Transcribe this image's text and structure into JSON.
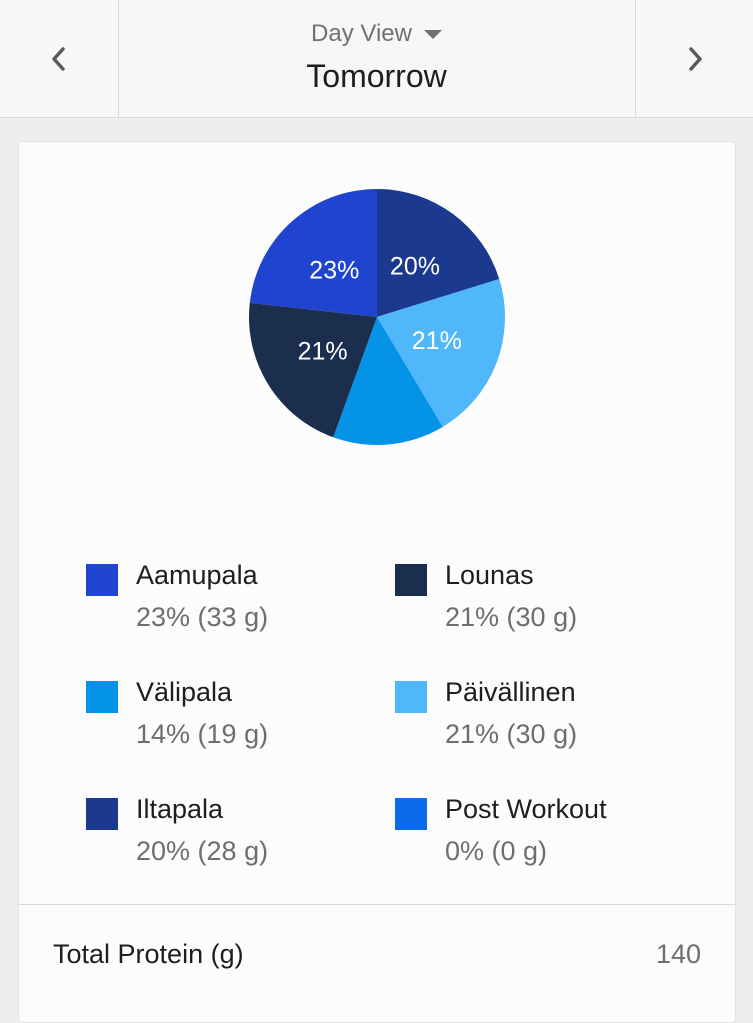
{
  "header": {
    "view_label": "Day View",
    "title": "Tomorrow",
    "prev_icon": "chevron-left-icon",
    "next_icon": "chevron-right-icon",
    "caret_icon": "caret-down-icon"
  },
  "chart_data": {
    "type": "pie",
    "categories": [
      "Aamupala",
      "Lounas",
      "Välipala",
      "Päivällinen",
      "Iltapala",
      "Post Workout"
    ],
    "values": [
      23,
      21,
      14,
      21,
      20,
      0
    ],
    "slice_labels": [
      "23%",
      "21%",
      "",
      "21%",
      "20%",
      ""
    ],
    "colors": [
      "#1f44cf",
      "#1b2e4d",
      "#0593e8",
      "#4fb7fa",
      "#1b3a8f",
      "#0b6bea"
    ],
    "start_angle_deg": 0,
    "order": [
      "Iltapala",
      "Päivällinen",
      "Välipala",
      "Lounas",
      "Aamupala"
    ]
  },
  "legend": [
    {
      "name": "Aamupala",
      "value": "23% (33 g)",
      "color": "#1f44cf"
    },
    {
      "name": "Lounas",
      "value": "21% (30 g)",
      "color": "#1b2e4d"
    },
    {
      "name": "Välipala",
      "value": "14% (19 g)",
      "color": "#0593e8"
    },
    {
      "name": "Päivällinen",
      "value": "21% (30 g)",
      "color": "#4fb7fa"
    },
    {
      "name": "Iltapala",
      "value": "20% (28 g)",
      "color": "#1b3a8f"
    },
    {
      "name": "Post Workout",
      "value": "0% (0 g)",
      "color": "#0b6bea"
    }
  ],
  "total": {
    "label": "Total Protein (g)",
    "value": "140"
  }
}
